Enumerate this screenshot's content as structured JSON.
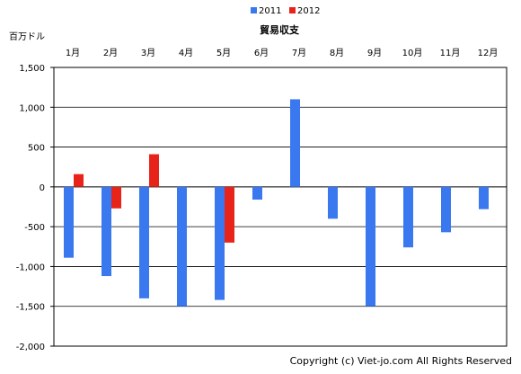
{
  "chart_data": {
    "type": "bar",
    "title": "貿易収支",
    "unit_label": "百万ドル",
    "categories": [
      "1月",
      "2月",
      "3月",
      "4月",
      "5月",
      "6月",
      "7月",
      "8月",
      "9月",
      "10月",
      "11月",
      "12月"
    ],
    "series": [
      {
        "name": "2011",
        "color": "#3a78f0",
        "values": [
          -890,
          -1120,
          -1400,
          -1500,
          -1420,
          -160,
          1100,
          -400,
          -1500,
          -760,
          -570,
          -280
        ]
      },
      {
        "name": "2012",
        "color": "#e8231a",
        "values": [
          160,
          -270,
          410,
          null,
          -700,
          null,
          null,
          null,
          null,
          null,
          null,
          null
        ]
      }
    ],
    "ylim": [
      -2000,
      1500
    ],
    "yticks": [
      1500,
      1000,
      500,
      0,
      -500,
      -1000,
      -1500,
      -2000
    ],
    "ytick_labels": [
      "1,500",
      "1,000",
      "500",
      "0",
      "-500",
      "-1,000",
      "-1,500",
      "-2,000"
    ],
    "grid": "horizontal",
    "legend_position": "top-center"
  },
  "copyright": "Copyright (c) Viet-jo.com All Rights Reserved"
}
